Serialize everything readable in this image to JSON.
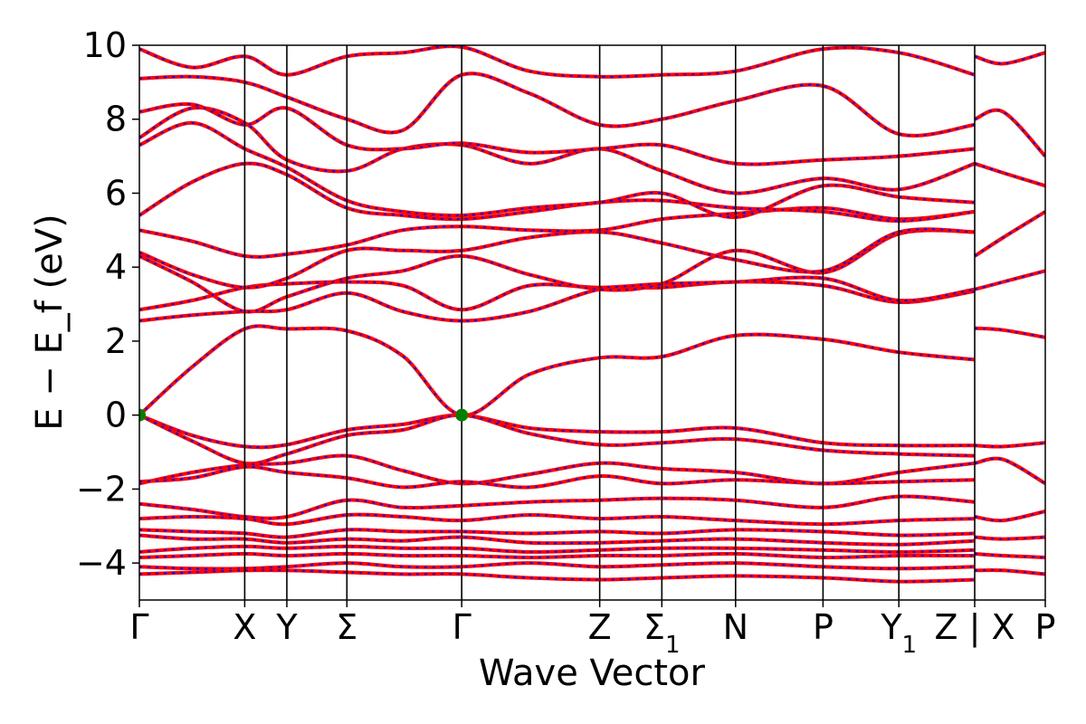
{
  "chart_data": {
    "type": "line",
    "title": "",
    "xlabel": "Wave Vector",
    "ylabel": "E − E_f (eV)",
    "ylim": [
      -5,
      10
    ],
    "yticks": [
      {
        "value": 10,
        "label": "10"
      },
      {
        "value": 8,
        "label": "8"
      },
      {
        "value": 6,
        "label": "6"
      },
      {
        "value": 4,
        "label": "4"
      },
      {
        "value": 2,
        "label": "2"
      },
      {
        "value": 0,
        "label": "0"
      },
      {
        "value": -2,
        "label": "−2"
      },
      {
        "value": -4,
        "label": "−4"
      }
    ],
    "xlim": [
      0,
      8.6
    ],
    "kpoints": [
      {
        "label": "Γ",
        "sub": "",
        "x": 0.0
      },
      {
        "label": "X",
        "sub": "",
        "x": 1.0
      },
      {
        "label": "Y",
        "sub": "",
        "x": 1.4
      },
      {
        "label": "Σ",
        "sub": "",
        "x": 1.97
      },
      {
        "label": "Γ",
        "sub": "",
        "x": 3.06
      },
      {
        "label": "Z",
        "sub": "",
        "x": 4.37
      },
      {
        "label": "Σ",
        "sub": "1",
        "x": 4.96
      },
      {
        "label": "N",
        "sub": "",
        "x": 5.66
      },
      {
        "label": "P",
        "sub": "",
        "x": 6.49
      },
      {
        "label": "Y",
        "sub": "1",
        "x": 7.21
      },
      {
        "label": "Z | X",
        "sub": "",
        "x": 7.93
      },
      {
        "label": "P",
        "sub": "",
        "x": 8.6
      }
    ],
    "series_style": {
      "primary_color": "#ff0000",
      "dash_color": "#0000ff",
      "marker_color": "#008000"
    },
    "markers": [
      {
        "x": 0.0,
        "y": 0.0
      },
      {
        "x": 3.06,
        "y": 0.0
      }
    ],
    "series": [
      {
        "x": [
          0,
          0.5,
          1.0,
          1.4,
          1.97,
          2.5,
          3.06,
          3.7,
          4.37,
          4.96,
          5.66,
          6.49,
          7.21,
          7.93
        ],
        "y": [
          0.0,
          1.3,
          2.33,
          2.33,
          2.28,
          1.6,
          0.0,
          1.1,
          1.55,
          1.58,
          2.15,
          2.05,
          1.7,
          1.5
        ]
      },
      {
        "x": [
          0,
          0.5,
          1.0,
          1.4,
          1.97,
          2.5,
          3.06,
          3.7,
          4.37,
          4.96,
          5.66,
          6.49,
          7.21,
          7.93
        ],
        "y": [
          0.0,
          -0.55,
          -0.85,
          -0.8,
          -0.4,
          -0.25,
          0.0,
          -0.35,
          -0.45,
          -0.45,
          -0.35,
          -0.75,
          -0.82,
          -0.82
        ]
      },
      {
        "x": [
          0,
          0.5,
          1.0,
          1.4,
          1.97,
          2.5,
          3.06,
          3.7,
          4.37,
          4.96,
          5.66,
          6.49,
          7.21,
          7.93
        ],
        "y": [
          0.0,
          -0.7,
          -1.3,
          -1.05,
          -0.55,
          -0.4,
          0.0,
          -0.5,
          -0.8,
          -0.75,
          -0.65,
          -0.95,
          -1.05,
          -1.1
        ]
      },
      {
        "x": [
          0,
          0.5,
          1.0,
          1.4,
          1.97,
          2.5,
          3.06,
          3.7,
          4.37,
          4.96,
          5.66,
          6.49,
          7.21,
          7.93
        ],
        "y": [
          -1.85,
          -1.55,
          -1.35,
          -1.3,
          -1.1,
          -1.5,
          -1.85,
          -1.6,
          -1.3,
          -1.45,
          -1.55,
          -1.85,
          -1.55,
          -1.3
        ]
      },
      {
        "x": [
          0,
          0.5,
          1.0,
          1.4,
          1.97,
          2.5,
          3.06,
          3.7,
          4.37,
          4.96,
          5.66,
          6.49,
          7.21,
          7.93
        ],
        "y": [
          -1.8,
          -1.7,
          -1.4,
          -1.55,
          -1.7,
          -1.95,
          -1.8,
          -1.95,
          -1.65,
          -1.85,
          -1.75,
          -1.85,
          -1.8,
          -1.75
        ]
      },
      {
        "x": [
          0,
          0.5,
          1.0,
          1.4,
          1.97,
          2.5,
          3.06,
          3.7,
          4.37,
          4.96,
          5.66,
          6.49,
          7.21,
          7.93
        ],
        "y": [
          -2.4,
          -2.55,
          -2.75,
          -2.75,
          -2.3,
          -2.5,
          -2.45,
          -2.35,
          -2.3,
          -2.25,
          -2.3,
          -2.5,
          -2.2,
          -2.35
        ]
      },
      {
        "x": [
          0,
          0.5,
          1.0,
          1.4,
          1.97,
          2.5,
          3.06,
          3.7,
          4.37,
          4.96,
          5.66,
          6.49,
          7.21,
          7.93
        ],
        "y": [
          -2.8,
          -2.75,
          -2.8,
          -2.95,
          -2.7,
          -2.75,
          -2.85,
          -2.7,
          -2.8,
          -2.75,
          -2.85,
          -2.95,
          -2.85,
          -2.8
        ]
      },
      {
        "x": [
          0,
          0.5,
          1.0,
          1.4,
          1.97,
          2.5,
          3.06,
          3.7,
          4.37,
          4.96,
          5.66,
          6.49,
          7.21,
          7.93
        ],
        "y": [
          -3.1,
          -3.15,
          -3.2,
          -3.3,
          -3.1,
          -3.15,
          -3.15,
          -3.2,
          -3.15,
          -3.2,
          -3.1,
          -3.15,
          -3.25,
          -3.2
        ]
      },
      {
        "x": [
          0,
          0.5,
          1.0,
          1.4,
          1.97,
          2.5,
          3.06,
          3.7,
          4.37,
          4.96,
          5.66,
          6.49,
          7.21,
          7.93
        ],
        "y": [
          -3.25,
          -3.35,
          -3.35,
          -3.45,
          -3.35,
          -3.4,
          -3.3,
          -3.45,
          -3.45,
          -3.4,
          -3.35,
          -3.45,
          -3.5,
          -3.4
        ]
      },
      {
        "x": [
          0,
          0.5,
          1.0,
          1.4,
          1.97,
          2.5,
          3.06,
          3.7,
          4.37,
          4.96,
          5.66,
          6.49,
          7.21,
          7.93
        ],
        "y": [
          -3.7,
          -3.6,
          -3.55,
          -3.6,
          -3.55,
          -3.6,
          -3.6,
          -3.7,
          -3.65,
          -3.6,
          -3.6,
          -3.65,
          -3.7,
          -3.65
        ]
      },
      {
        "x": [
          0,
          0.5,
          1.0,
          1.4,
          1.97,
          2.5,
          3.06,
          3.7,
          4.37,
          4.96,
          5.66,
          6.49,
          7.21,
          7.93
        ],
        "y": [
          -3.85,
          -3.8,
          -3.75,
          -3.8,
          -3.75,
          -3.8,
          -3.8,
          -3.85,
          -3.8,
          -3.8,
          -3.75,
          -3.85,
          -3.8,
          -3.8
        ]
      },
      {
        "x": [
          0,
          0.5,
          1.0,
          1.4,
          1.97,
          2.5,
          3.06,
          3.7,
          4.37,
          4.96,
          5.66,
          6.49,
          7.21,
          7.93
        ],
        "y": [
          -4.1,
          -4.15,
          -4.15,
          -4.1,
          -4.0,
          -4.1,
          -4.1,
          -4.0,
          -4.1,
          -4.05,
          -4.0,
          -4.1,
          -4.15,
          -4.1
        ]
      },
      {
        "x": [
          0,
          0.5,
          1.0,
          1.4,
          1.97,
          2.5,
          3.06,
          3.7,
          4.37,
          4.96,
          5.66,
          6.49,
          7.21,
          7.93
        ],
        "y": [
          -4.3,
          -4.25,
          -4.2,
          -4.2,
          -4.25,
          -4.3,
          -4.3,
          -4.4,
          -4.45,
          -4.4,
          -4.35,
          -4.4,
          -4.5,
          -4.45
        ]
      },
      {
        "x": [
          0,
          0.5,
          1.0,
          1.4,
          1.97,
          2.5,
          3.06,
          3.7,
          4.37,
          4.96,
          5.66,
          6.49,
          7.21,
          7.93
        ],
        "y": [
          2.55,
          2.7,
          2.8,
          2.85,
          3.3,
          2.8,
          2.55,
          2.8,
          3.4,
          3.45,
          3.6,
          3.5,
          3.05,
          3.35
        ]
      },
      {
        "x": [
          0,
          0.5,
          1.0,
          1.4,
          1.97,
          2.5,
          3.06,
          3.7,
          4.37,
          4.96,
          5.66,
          6.49,
          7.21,
          7.93
        ],
        "y": [
          2.85,
          3.1,
          3.45,
          3.55,
          3.6,
          3.5,
          2.85,
          3.5,
          3.45,
          3.55,
          3.6,
          3.7,
          3.1,
          3.4
        ]
      },
      {
        "x": [
          0,
          0.5,
          1.0,
          1.4,
          1.97,
          2.5,
          3.06,
          3.7,
          4.37,
          4.96,
          5.66,
          6.49,
          7.21,
          7.93
        ],
        "y": [
          4.3,
          3.6,
          2.8,
          3.2,
          3.7,
          3.9,
          4.3,
          3.8,
          3.4,
          3.55,
          4.45,
          3.85,
          4.9,
          4.95
        ]
      },
      {
        "x": [
          0,
          0.5,
          1.0,
          1.4,
          1.97,
          2.5,
          3.06,
          3.7,
          4.37,
          4.96,
          5.66,
          6.49,
          7.21,
          7.93
        ],
        "y": [
          4.4,
          3.8,
          3.45,
          3.7,
          4.45,
          4.45,
          4.45,
          4.8,
          4.95,
          4.65,
          4.2,
          3.9,
          4.95,
          4.95
        ]
      },
      {
        "x": [
          0,
          0.5,
          1.0,
          1.4,
          1.97,
          2.5,
          3.06,
          3.7,
          4.37,
          4.96,
          5.66,
          6.49,
          7.21,
          7.93
        ],
        "y": [
          5.0,
          4.7,
          4.3,
          4.35,
          4.6,
          5.0,
          5.1,
          5.0,
          5.0,
          5.3,
          5.45,
          5.6,
          5.3,
          5.5
        ]
      },
      {
        "x": [
          0,
          0.5,
          1.0,
          1.4,
          1.97,
          2.5,
          3.06,
          3.7,
          4.37,
          4.96,
          5.66,
          6.49,
          7.21,
          7.93
        ],
        "y": [
          5.4,
          6.3,
          6.8,
          6.5,
          5.6,
          5.4,
          5.3,
          5.5,
          5.75,
          5.8,
          5.6,
          5.5,
          5.25,
          5.5
        ]
      },
      {
        "x": [
          0,
          0.5,
          1.0,
          1.4,
          1.97,
          2.5,
          3.06,
          3.7,
          4.37,
          4.96,
          5.66,
          6.49,
          7.21,
          7.93
        ],
        "y": [
          7.3,
          7.9,
          7.2,
          6.7,
          5.8,
          5.5,
          5.4,
          5.6,
          5.75,
          6.0,
          5.35,
          6.2,
          5.9,
          5.75
        ]
      },
      {
        "x": [
          0,
          0.5,
          1.0,
          1.4,
          1.97,
          2.5,
          3.06,
          3.7,
          4.37,
          4.96,
          5.66,
          6.49,
          7.21,
          7.93
        ],
        "y": [
          7.5,
          8.3,
          7.9,
          6.9,
          6.6,
          7.2,
          7.3,
          6.8,
          7.2,
          6.6,
          6.0,
          6.4,
          6.1,
          6.8
        ]
      },
      {
        "x": [
          0,
          0.5,
          1.0,
          1.4,
          1.97,
          2.5,
          3.06,
          3.7,
          4.37,
          4.96,
          5.66,
          6.49,
          7.21,
          7.93
        ],
        "y": [
          8.2,
          8.4,
          7.85,
          8.3,
          7.3,
          7.2,
          7.35,
          7.1,
          7.2,
          7.3,
          6.8,
          6.9,
          7.0,
          7.2
        ]
      },
      {
        "x": [
          0,
          0.5,
          1.0,
          1.4,
          1.97,
          2.5,
          3.06,
          3.7,
          4.37,
          4.96,
          5.66,
          6.49,
          7.21,
          7.93
        ],
        "y": [
          9.1,
          9.15,
          9.0,
          8.6,
          8.0,
          7.7,
          9.2,
          8.7,
          7.85,
          8.0,
          8.5,
          8.9,
          7.6,
          7.85
        ]
      },
      {
        "x": [
          0,
          0.5,
          1.0,
          1.4,
          1.97,
          2.5,
          3.06,
          3.7,
          4.37,
          4.96,
          5.66,
          6.49,
          7.21,
          7.93
        ],
        "y": [
          9.9,
          9.4,
          9.7,
          9.2,
          9.7,
          9.8,
          9.95,
          9.3,
          9.15,
          9.2,
          9.3,
          9.9,
          9.8,
          9.2
        ]
      },
      {
        "x": [
          7.93,
          8.2,
          8.6
        ],
        "y": [
          2.35,
          2.3,
          2.1
        ]
      },
      {
        "x": [
          7.93,
          8.2,
          8.6
        ],
        "y": [
          3.4,
          3.6,
          3.9
        ]
      },
      {
        "x": [
          7.93,
          8.2,
          8.6
        ],
        "y": [
          4.3,
          4.8,
          5.5
        ]
      },
      {
        "x": [
          7.93,
          8.2,
          8.6
        ],
        "y": [
          6.8,
          6.55,
          6.2
        ]
      },
      {
        "x": [
          7.93,
          8.2,
          8.6
        ],
        "y": [
          8.0,
          8.2,
          7.0
        ]
      },
      {
        "x": [
          7.93,
          8.2,
          8.6
        ],
        "y": [
          9.7,
          9.5,
          9.8
        ]
      },
      {
        "x": [
          7.93,
          8.2,
          8.6
        ],
        "y": [
          -0.82,
          -0.85,
          -0.75
        ]
      },
      {
        "x": [
          7.93,
          8.2,
          8.6
        ],
        "y": [
          -1.3,
          -1.2,
          -1.85
        ]
      },
      {
        "x": [
          7.93,
          8.2,
          8.6
        ],
        "y": [
          -2.75,
          -2.85,
          -2.6
        ]
      },
      {
        "x": [
          7.93,
          8.2,
          8.6
        ],
        "y": [
          -3.3,
          -3.35,
          -3.3
        ]
      },
      {
        "x": [
          7.93,
          8.2,
          8.6
        ],
        "y": [
          -3.75,
          -3.8,
          -3.85
        ]
      },
      {
        "x": [
          7.93,
          8.2,
          8.6
        ],
        "y": [
          -4.2,
          -4.2,
          -4.3
        ]
      }
    ]
  }
}
